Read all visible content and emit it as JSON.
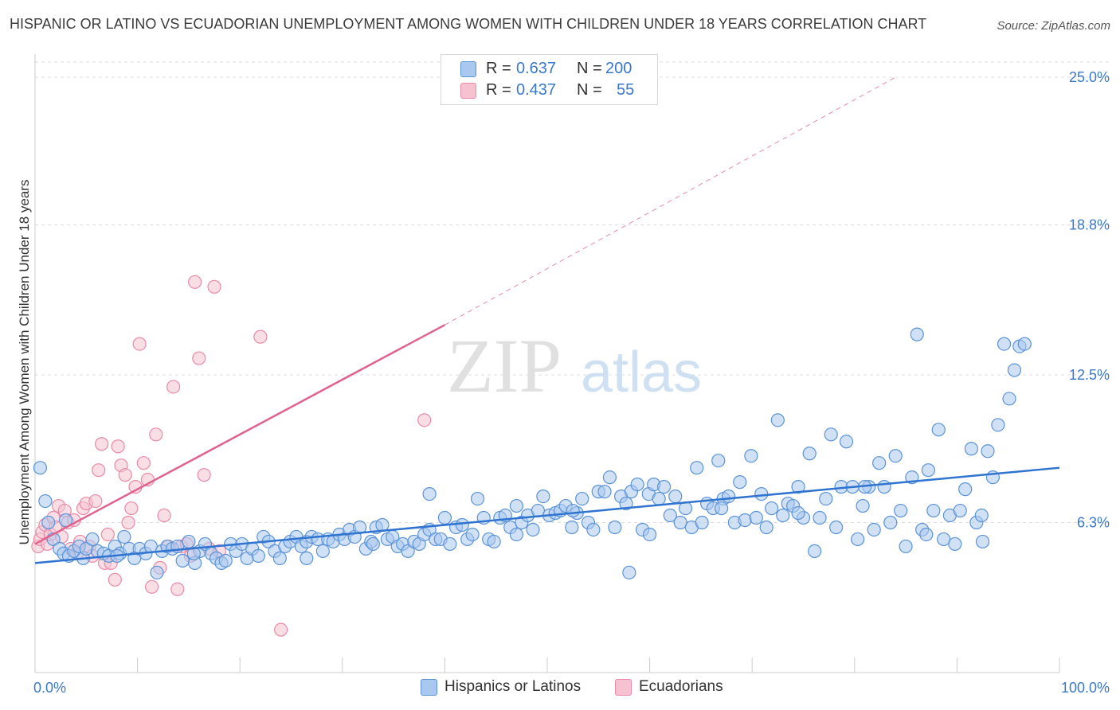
{
  "header": {
    "title": "HISPANIC OR LATINO VS ECUADORIAN UNEMPLOYMENT AMONG WOMEN WITH CHILDREN UNDER 18 YEARS CORRELATION CHART",
    "source": "Source: ZipAtlas.com"
  },
  "watermark": {
    "zip": "ZIP",
    "atlas": "atlas"
  },
  "legend": {
    "rows": [
      {
        "r_label": "R =",
        "r_value": "0.637",
        "n_label": "N =",
        "n_value": "200"
      },
      {
        "r_label": "R =",
        "r_value": "0.437",
        "n_label": "N =",
        "n_value": "55"
      }
    ]
  },
  "bottom_legend": {
    "items": [
      {
        "label": "Hispanics or Latinos"
      },
      {
        "label": "Ecuadorians"
      }
    ]
  },
  "colors": {
    "blue_fill": "#a9c8ef",
    "blue_stroke": "#5b93d6",
    "blue_line": "#2f74d0",
    "pink_fill": "#f6c2d1",
    "pink_stroke": "#e98aa7",
    "pink_line": "#e0628e",
    "grid": "#dddddd",
    "tick_text": "#3a78c9"
  },
  "chart_data": {
    "type": "scatter",
    "title": "HISPANIC OR LATINO VS ECUADORIAN UNEMPLOYMENT AMONG WOMEN WITH CHILDREN UNDER 18 YEARS CORRELATION CHART",
    "xlabel": "",
    "ylabel": "Unemployment Among Women with Children Under 18 years",
    "xlim": [
      0,
      100
    ],
    "ylim": [
      0,
      25.0
    ],
    "x_tick_labels": [
      "0.0%",
      "100.0%"
    ],
    "y_ticks": [
      6.3,
      12.5,
      18.8,
      25.0
    ],
    "y_tick_labels": [
      "6.3%",
      "12.5%",
      "18.8%",
      "25.0%"
    ],
    "grid": "horizontal-dashed",
    "legend_position": "top-center",
    "series": [
      {
        "name": "Hispanics or Latinos",
        "color": "#a9c8ef",
        "trend": {
          "x": [
            0,
            100
          ],
          "y": [
            4.6,
            8.6
          ],
          "style": "solid"
        },
        "points": [
          [
            0.5,
            8.6
          ],
          [
            1.0,
            7.2
          ],
          [
            1.3,
            6.3
          ],
          [
            1.8,
            5.6
          ],
          [
            2.4,
            5.2
          ],
          [
            2.8,
            5.0
          ],
          [
            3.3,
            4.9
          ],
          [
            3.8,
            5.1
          ],
          [
            4.3,
            5.3
          ],
          [
            4.7,
            4.8
          ],
          [
            5.0,
            5.2
          ],
          [
            5.6,
            5.6
          ],
          [
            6.1,
            5.1
          ],
          [
            6.7,
            5.0
          ],
          [
            7.2,
            4.9
          ],
          [
            7.8,
            5.3
          ],
          [
            8.3,
            5.0
          ],
          [
            8.7,
            5.7
          ],
          [
            9.2,
            5.2
          ],
          [
            9.7,
            4.8
          ],
          [
            10.2,
            5.2
          ],
          [
            10.8,
            5.0
          ],
          [
            11.3,
            5.3
          ],
          [
            11.9,
            4.2
          ],
          [
            12.4,
            5.1
          ],
          [
            12.9,
            5.3
          ],
          [
            13.4,
            5.2
          ],
          [
            13.9,
            5.3
          ],
          [
            14.4,
            4.7
          ],
          [
            15.0,
            5.5
          ],
          [
            15.6,
            4.6
          ],
          [
            16.1,
            5.1
          ],
          [
            16.6,
            5.4
          ],
          [
            17.2,
            5.0
          ],
          [
            17.7,
            4.8
          ],
          [
            18.2,
            4.6
          ],
          [
            18.6,
            4.7
          ],
          [
            19.1,
            5.4
          ],
          [
            19.6,
            5.1
          ],
          [
            20.2,
            5.4
          ],
          [
            20.7,
            4.8
          ],
          [
            21.2,
            5.2
          ],
          [
            21.8,
            4.9
          ],
          [
            22.3,
            5.7
          ],
          [
            22.8,
            5.5
          ],
          [
            23.4,
            5.1
          ],
          [
            23.9,
            4.8
          ],
          [
            24.4,
            5.3
          ],
          [
            24.9,
            5.5
          ],
          [
            25.5,
            5.7
          ],
          [
            26.0,
            5.3
          ],
          [
            26.5,
            5.5
          ],
          [
            27.0,
            5.7
          ],
          [
            27.6,
            5.6
          ],
          [
            28.1,
            5.1
          ],
          [
            28.6,
            5.6
          ],
          [
            29.1,
            5.5
          ],
          [
            29.7,
            5.8
          ],
          [
            30.2,
            5.6
          ],
          [
            30.7,
            6.0
          ],
          [
            31.2,
            5.7
          ],
          [
            31.7,
            6.1
          ],
          [
            32.3,
            5.2
          ],
          [
            32.8,
            5.5
          ],
          [
            33.3,
            6.1
          ],
          [
            33.9,
            6.2
          ],
          [
            34.4,
            5.6
          ],
          [
            34.9,
            5.7
          ],
          [
            35.4,
            5.3
          ],
          [
            35.9,
            5.4
          ],
          [
            36.4,
            5.1
          ],
          [
            37.0,
            5.5
          ],
          [
            37.5,
            5.4
          ],
          [
            38.0,
            5.8
          ],
          [
            38.5,
            6.0
          ],
          [
            39.1,
            5.6
          ],
          [
            39.6,
            5.6
          ],
          [
            40.0,
            6.5
          ],
          [
            40.5,
            5.4
          ],
          [
            41.1,
            6.1
          ],
          [
            41.7,
            6.2
          ],
          [
            42.2,
            5.6
          ],
          [
            42.7,
            5.8
          ],
          [
            43.2,
            7.3
          ],
          [
            43.8,
            6.5
          ],
          [
            44.3,
            5.6
          ],
          [
            44.8,
            5.5
          ],
          [
            45.4,
            6.5
          ],
          [
            45.9,
            6.6
          ],
          [
            46.4,
            6.1
          ],
          [
            47.0,
            5.8
          ],
          [
            47.5,
            6.3
          ],
          [
            48.1,
            6.6
          ],
          [
            48.6,
            6.0
          ],
          [
            49.1,
            6.8
          ],
          [
            49.6,
            7.4
          ],
          [
            50.2,
            6.6
          ],
          [
            50.8,
            6.7
          ],
          [
            51.3,
            6.8
          ],
          [
            51.8,
            7.0
          ],
          [
            52.4,
            6.1
          ],
          [
            52.9,
            6.7
          ],
          [
            53.4,
            7.3
          ],
          [
            54.0,
            6.3
          ],
          [
            54.5,
            6.0
          ],
          [
            55.0,
            7.6
          ],
          [
            55.6,
            7.6
          ],
          [
            56.1,
            8.2
          ],
          [
            56.6,
            6.1
          ],
          [
            57.2,
            7.4
          ],
          [
            57.7,
            7.1
          ],
          [
            58.2,
            7.6
          ],
          [
            58.8,
            7.9
          ],
          [
            59.3,
            6.0
          ],
          [
            59.9,
            7.5
          ],
          [
            60.4,
            7.9
          ],
          [
            60.9,
            7.3
          ],
          [
            61.4,
            7.8
          ],
          [
            62.0,
            6.6
          ],
          [
            62.5,
            7.4
          ],
          [
            63.0,
            6.3
          ],
          [
            63.5,
            6.9
          ],
          [
            64.1,
            6.1
          ],
          [
            64.6,
            8.6
          ],
          [
            65.1,
            6.3
          ],
          [
            65.6,
            7.1
          ],
          [
            66.2,
            6.9
          ],
          [
            66.7,
            8.9
          ],
          [
            67.2,
            7.3
          ],
          [
            67.7,
            7.4
          ],
          [
            68.3,
            6.3
          ],
          [
            68.8,
            8.0
          ],
          [
            69.3,
            6.4
          ],
          [
            69.9,
            9.1
          ],
          [
            70.4,
            6.5
          ],
          [
            70.9,
            7.5
          ],
          [
            71.4,
            6.1
          ],
          [
            71.9,
            6.9
          ],
          [
            72.5,
            10.6
          ],
          [
            73.0,
            6.6
          ],
          [
            73.5,
            7.1
          ],
          [
            74.0,
            7.0
          ],
          [
            74.5,
            7.8
          ],
          [
            75.0,
            6.5
          ],
          [
            75.6,
            9.2
          ],
          [
            76.1,
            5.1
          ],
          [
            76.6,
            6.5
          ],
          [
            77.2,
            7.3
          ],
          [
            77.7,
            10.0
          ],
          [
            78.2,
            6.1
          ],
          [
            78.7,
            7.8
          ],
          [
            79.2,
            9.7
          ],
          [
            79.8,
            7.8
          ],
          [
            80.3,
            5.6
          ],
          [
            80.8,
            7.0
          ],
          [
            81.4,
            7.8
          ],
          [
            81.9,
            6.0
          ],
          [
            82.4,
            8.8
          ],
          [
            82.9,
            7.8
          ],
          [
            83.5,
            6.3
          ],
          [
            84.0,
            9.1
          ],
          [
            84.5,
            6.8
          ],
          [
            85.0,
            5.3
          ],
          [
            85.6,
            8.2
          ],
          [
            86.1,
            14.2
          ],
          [
            86.6,
            6.0
          ],
          [
            87.2,
            8.5
          ],
          [
            87.7,
            6.8
          ],
          [
            88.2,
            10.2
          ],
          [
            88.7,
            5.6
          ],
          [
            89.3,
            6.6
          ],
          [
            89.8,
            5.4
          ],
          [
            90.3,
            6.8
          ],
          [
            90.8,
            7.7
          ],
          [
            91.4,
            9.4
          ],
          [
            91.9,
            6.3
          ],
          [
            92.4,
            6.6
          ],
          [
            93.0,
            9.3
          ],
          [
            93.5,
            8.2
          ],
          [
            94.0,
            10.4
          ],
          [
            94.6,
            13.8
          ],
          [
            95.1,
            11.5
          ],
          [
            95.6,
            12.7
          ],
          [
            96.1,
            13.7
          ],
          [
            96.6,
            13.8
          ],
          [
            3.0,
            6.4
          ],
          [
            8.0,
            4.9
          ],
          [
            15.5,
            5.0
          ],
          [
            26.5,
            4.8
          ],
          [
            33.0,
            5.4
          ],
          [
            38.5,
            7.5
          ],
          [
            47.0,
            7.0
          ],
          [
            52.5,
            6.8
          ],
          [
            60.0,
            5.8
          ],
          [
            67.0,
            6.9
          ],
          [
            74.5,
            6.7
          ],
          [
            81.0,
            7.8
          ],
          [
            87.0,
            5.8
          ],
          [
            92.5,
            5.5
          ],
          [
            58.0,
            4.2
          ]
        ]
      },
      {
        "name": "Ecuadorians",
        "color": "#f6c2d1",
        "trend": {
          "x": [
            0,
            40
          ],
          "y": [
            5.4,
            14.6
          ],
          "style": "solid",
          "extension": {
            "x": [
              40,
              84
            ],
            "y": [
              14.6,
              25.0
            ],
            "style": "dashed"
          }
        },
        "points": [
          [
            0.3,
            5.3
          ],
          [
            0.5,
            5.6
          ],
          [
            0.7,
            5.9
          ],
          [
            1.0,
            6.2
          ],
          [
            1.2,
            5.4
          ],
          [
            1.5,
            5.8
          ],
          [
            1.8,
            6.5
          ],
          [
            2.0,
            6.1
          ],
          [
            2.3,
            7.0
          ],
          [
            2.6,
            5.7
          ],
          [
            2.9,
            6.8
          ],
          [
            3.2,
            6.3
          ],
          [
            3.5,
            5.2
          ],
          [
            3.8,
            6.4
          ],
          [
            4.1,
            5.0
          ],
          [
            4.4,
            5.5
          ],
          [
            4.7,
            6.9
          ],
          [
            5.0,
            7.1
          ],
          [
            5.3,
            5.3
          ],
          [
            5.6,
            4.9
          ],
          [
            5.9,
            7.2
          ],
          [
            6.2,
            8.5
          ],
          [
            6.5,
            9.6
          ],
          [
            6.8,
            4.6
          ],
          [
            7.1,
            5.8
          ],
          [
            7.4,
            4.6
          ],
          [
            7.8,
            3.9
          ],
          [
            8.1,
            9.5
          ],
          [
            8.4,
            8.7
          ],
          [
            8.8,
            8.3
          ],
          [
            9.1,
            6.3
          ],
          [
            9.4,
            6.9
          ],
          [
            9.8,
            7.8
          ],
          [
            10.2,
            13.8
          ],
          [
            10.6,
            8.8
          ],
          [
            11.0,
            8.1
          ],
          [
            11.4,
            3.6
          ],
          [
            11.8,
            10.0
          ],
          [
            12.2,
            4.4
          ],
          [
            12.6,
            6.6
          ],
          [
            13.0,
            5.3
          ],
          [
            13.5,
            12.0
          ],
          [
            13.9,
            3.5
          ],
          [
            14.3,
            5.3
          ],
          [
            14.8,
            5.4
          ],
          [
            15.2,
            4.9
          ],
          [
            15.6,
            16.4
          ],
          [
            16.0,
            13.2
          ],
          [
            16.5,
            8.3
          ],
          [
            17.0,
            5.2
          ],
          [
            17.5,
            16.2
          ],
          [
            18.0,
            5.1
          ],
          [
            22.0,
            14.1
          ],
          [
            24.0,
            1.8
          ],
          [
            38.0,
            10.6
          ]
        ]
      }
    ]
  }
}
